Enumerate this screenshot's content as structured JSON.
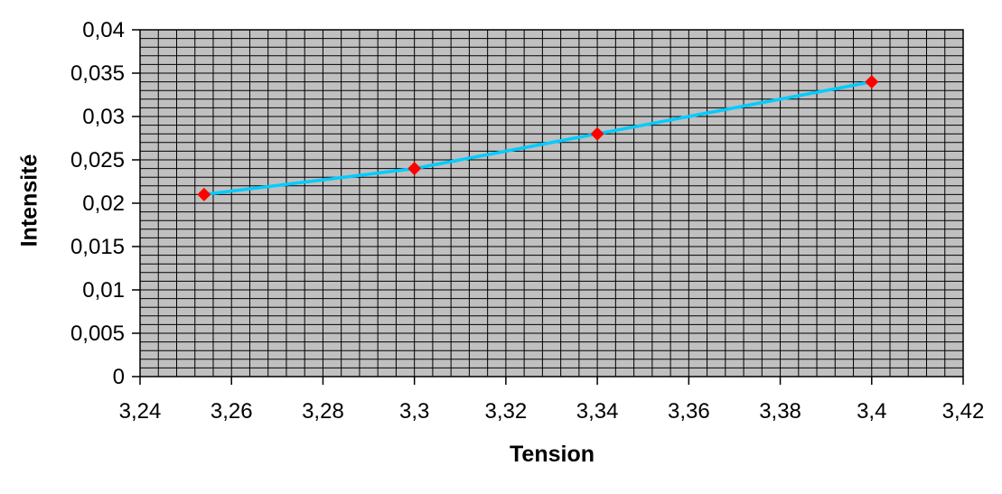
{
  "chart_data": {
    "type": "line",
    "title": "",
    "xlabel": "Tension",
    "ylabel": "Intensité",
    "points": {
      "x": [
        3.254,
        3.3,
        3.34,
        3.4
      ],
      "y": [
        0.021,
        0.024,
        0.028,
        0.034
      ]
    },
    "xlim": [
      3.24,
      3.42
    ],
    "ylim": [
      0,
      0.04
    ],
    "x_major_step": 0.02,
    "x_minor_step": 0.004,
    "y_major_step": 0.005,
    "y_minor_step": 0.001,
    "x_tick_labels": [
      "3,24",
      "3,26",
      "3,28",
      "3,3",
      "3,32",
      "3,34",
      "3,36",
      "3,38",
      "3,4",
      "3,42"
    ],
    "y_tick_labels": [
      "0",
      "0,005",
      "0,01",
      "0,015",
      "0,02",
      "0,025",
      "0,03",
      "0,035",
      "0,04"
    ],
    "decimal_separator": ",",
    "grid": "minor-and-major",
    "legend": "none",
    "marker_shape": "diamond",
    "colors": {
      "plot_background": "#c0c0c0",
      "gridline": "#000000",
      "border": "#000000",
      "line": "#00ccff",
      "marker": "#ff0000",
      "text": "#000000",
      "page_background": "#ffffff"
    }
  }
}
